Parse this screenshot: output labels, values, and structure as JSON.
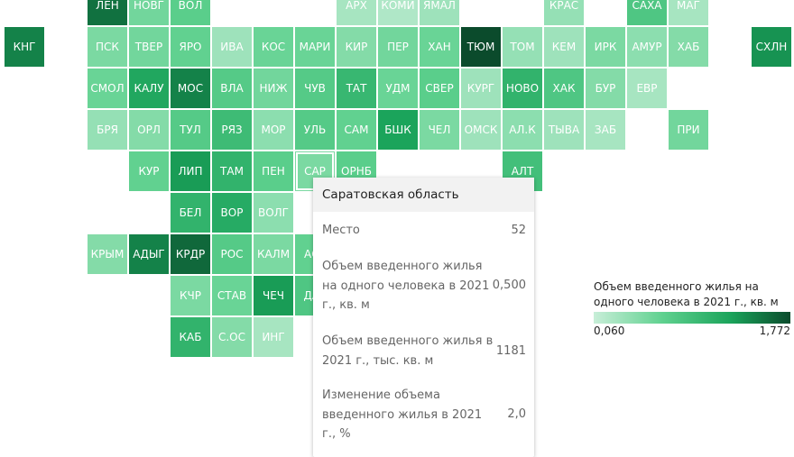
{
  "chart_data": {
    "type": "heatmap",
    "cells": [
      {
        "label": "ЛЕН",
        "value": 1.55
      },
      {
        "label": "НОВГ",
        "value": 0.55
      },
      {
        "label": "ВОЛ",
        "value": 0.7
      },
      {
        "label": "АРХ",
        "value": 0.25
      },
      {
        "label": "КОМИ",
        "value": 0.2
      },
      {
        "label": "ЯМАЛ",
        "value": 0.3
      },
      {
        "label": "КРАС",
        "value": 0.35
      },
      {
        "label": "САХА",
        "value": 0.8
      },
      {
        "label": "МАГ",
        "value": 0.25
      },
      {
        "label": "КНГ",
        "value": 1.45
      },
      {
        "label": "ПСК",
        "value": 0.5
      },
      {
        "label": "ТВЕР",
        "value": 0.55
      },
      {
        "label": "ЯРО",
        "value": 0.65
      },
      {
        "label": "ИВА",
        "value": 0.3
      },
      {
        "label": "КОС",
        "value": 0.6
      },
      {
        "label": "МАРИ",
        "value": 0.6
      },
      {
        "label": "КИР",
        "value": 0.45
      },
      {
        "label": "ПЕР",
        "value": 0.55
      },
      {
        "label": "ХАН",
        "value": 0.6
      },
      {
        "label": "ТЮМ",
        "value": 1.77
      },
      {
        "label": "ТОМ",
        "value": 0.35
      },
      {
        "label": "КЕМ",
        "value": 0.3
      },
      {
        "label": "ИРК",
        "value": 0.5
      },
      {
        "label": "АМУР",
        "value": 0.4
      },
      {
        "label": "ХАБ",
        "value": 0.45
      },
      {
        "label": "СХЛН",
        "value": 1.35
      },
      {
        "label": "СМОЛ",
        "value": 0.6
      },
      {
        "label": "КАЛУ",
        "value": 1.2
      },
      {
        "label": "МОС",
        "value": 1.45
      },
      {
        "label": "ВЛА",
        "value": 0.75
      },
      {
        "label": "НИЖ",
        "value": 0.55
      },
      {
        "label": "ЧУВ",
        "value": 0.75
      },
      {
        "label": "ТАТ",
        "value": 1.0
      },
      {
        "label": "УДМ",
        "value": 0.6
      },
      {
        "label": "СВЕР",
        "value": 0.7
      },
      {
        "label": "КУРГ",
        "value": 0.3
      },
      {
        "label": "НОВО",
        "value": 1.05
      },
      {
        "label": "ХАК",
        "value": 0.8
      },
      {
        "label": "БУР",
        "value": 0.45
      },
      {
        "label": "ЕВР",
        "value": 0.25
      },
      {
        "label": "БРЯ",
        "value": 0.35
      },
      {
        "label": "ОРЛ",
        "value": 0.45
      },
      {
        "label": "ТУЛ",
        "value": 0.75
      },
      {
        "label": "РЯЗ",
        "value": 0.95
      },
      {
        "label": "МОР",
        "value": 0.4
      },
      {
        "label": "УЛЬ",
        "value": 0.75
      },
      {
        "label": "САМ",
        "value": 0.65
      },
      {
        "label": "БШК",
        "value": 1.25
      },
      {
        "label": "ЧЕЛ",
        "value": 0.5
      },
      {
        "label": "ОМСК",
        "value": 0.3
      },
      {
        "label": "АЛ.К",
        "value": 0.4
      },
      {
        "label": "ТЫВА",
        "value": 0.3
      },
      {
        "label": "ЗАБ",
        "value": 0.25
      },
      {
        "label": "ПРИ",
        "value": 0.55
      },
      {
        "label": "КУР",
        "value": 0.65
      },
      {
        "label": "ЛИП",
        "value": 1.3
      },
      {
        "label": "ТАМ",
        "value": 1.05
      },
      {
        "label": "ПЕН",
        "value": 0.7
      },
      {
        "label": "САР",
        "value": 0.5
      },
      {
        "label": "ОРНБ",
        "value": 0.7
      },
      {
        "label": "АЛТ",
        "value": 0.9
      },
      {
        "label": "БЕЛ",
        "value": 1.05
      },
      {
        "label": "ВОР",
        "value": 1.15
      },
      {
        "label": "ВОЛГ",
        "value": 0.4
      },
      {
        "label": "КРЫМ",
        "value": 0.45
      },
      {
        "label": "АДЫГ",
        "value": 1.45
      },
      {
        "label": "КРДР",
        "value": 1.6
      },
      {
        "label": "РОС",
        "value": 0.75
      },
      {
        "label": "КАЛМ",
        "value": 0.5
      },
      {
        "label": "АСТ",
        "value": 0.65
      },
      {
        "label": "КЧР",
        "value": 0.5
      },
      {
        "label": "СТАВ",
        "value": 0.6
      },
      {
        "label": "ЧЕЧ",
        "value": 1.3
      },
      {
        "label": "ДАГ",
        "value": 0.8
      },
      {
        "label": "КАБ",
        "value": 1.05
      },
      {
        "label": "С.ОС",
        "value": 0.45
      },
      {
        "label": "ИНГ",
        "value": 0.25
      }
    ],
    "scale_min": 0.06,
    "scale_max": 1.772,
    "colors": {
      "low": "#c8eed8",
      "mid_low": "#5fd18f",
      "mid_high": "#1aa35a",
      "high": "#0b4b2c"
    },
    "hovered_cell": "САР"
  },
  "tooltip": {
    "title": "Саратовская область",
    "rows": [
      {
        "label": "Место",
        "value": "52"
      },
      {
        "label": "Объем введенного жилья на одного человека в 2021 г., кв. м",
        "value": "0,500"
      },
      {
        "label": "Объем введенного жилья в 2021 г., тыс. кв. м",
        "value": "1181"
      },
      {
        "label": "Изменение объема введенного жилья в 2021 г., %",
        "value": "2,0"
      }
    ]
  },
  "legend": {
    "title": "Объем введенного жилья на одного человека в 2021 г., кв. м",
    "min_label": "0,060",
    "max_label": "1,772"
  }
}
